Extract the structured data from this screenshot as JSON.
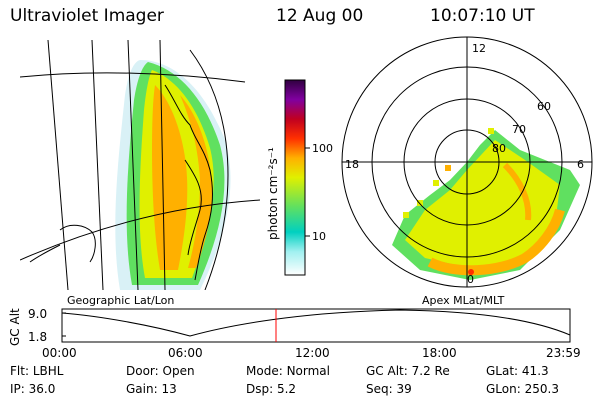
{
  "header": {
    "instrument": "Ultraviolet Imager",
    "date": "12 Aug 00",
    "time": "10:07:10 UT"
  },
  "geo_panel": {
    "label": "Geographic Lat/Lon"
  },
  "polar_panel": {
    "label": "Apex MLat/MLT",
    "mlt_labels": [
      "12",
      "18",
      "6",
      "0"
    ],
    "lat_labels": [
      "60",
      "70",
      "80"
    ]
  },
  "colorbar": {
    "unit_label": "photon cm⁻²s⁻¹",
    "ticks": [
      "100",
      "10"
    ],
    "scale": "log",
    "colors": [
      "#ffffff",
      "#a0f0f0",
      "#00d0c0",
      "#60e060",
      "#e0f000",
      "#ffb000",
      "#ff3000",
      "#c00020",
      "#8000a0",
      "#300040"
    ]
  },
  "altitude_plot": {
    "ylabel": "GC Alt",
    "y_ticks": [
      "9.0",
      "1.8"
    ],
    "x_ticks": [
      "00:00",
      "06:00",
      "12:00",
      "18:00",
      "23:59"
    ],
    "marker_color": "#ff0000",
    "marker_time": "10:07"
  },
  "info_rows": [
    [
      {
        "key": "Flt:",
        "val": "LBHL"
      },
      {
        "key": "Door:",
        "val": "Open"
      },
      {
        "key": "Mode:",
        "val": "Normal"
      },
      {
        "key": "GC Alt:",
        "val": "7.2 Re"
      },
      {
        "key": "GLat:",
        "val": "41.3"
      }
    ],
    [
      {
        "key": "IP:",
        "val": "36.0"
      },
      {
        "key": "Gain:",
        "val": "13"
      },
      {
        "key": "Dsp:",
        "val": "5.2"
      },
      {
        "key": "Seq:",
        "val": "39"
      },
      {
        "key": "GLon:",
        "val": "250.3"
      }
    ]
  ]
}
